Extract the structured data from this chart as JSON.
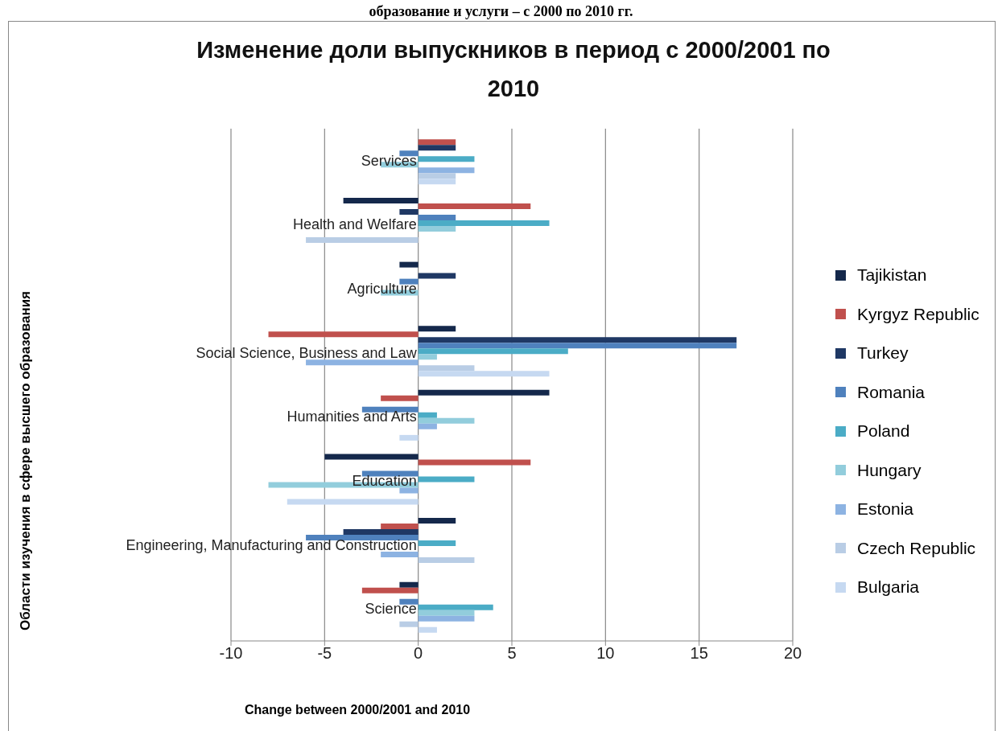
{
  "chart_data": {
    "type": "bar",
    "orientation": "horizontal",
    "title": "Изменение доли выпускников в период с 2000/2001 по 2010",
    "xlabel": "Change between 2000/2001 and 2010",
    "annotations": [
      "образование и услуги – с 2000 по 2010 гг.",
      "Области изучения в сфере высшего образования"
    ],
    "categories": [
      "Services",
      "Health and Welfare",
      "Agriculture",
      "Social Science, Business and Law",
      "Humanities and Arts",
      "Education",
      "Engineering, Manufacturing and Construction",
      "Science"
    ],
    "series": [
      {
        "name": "Tajikistan",
        "color": "#14284b",
        "values": [
          null,
          -4,
          -1,
          2,
          7,
          -5,
          2,
          -1
        ]
      },
      {
        "name": "Kyrgyz Republic",
        "color": "#c0504d",
        "values": [
          2,
          6,
          null,
          -8,
          -2,
          6,
          -2,
          -3
        ]
      },
      {
        "name": "Turkey",
        "color": "#1f3864",
        "values": [
          2,
          -1,
          2,
          17,
          null,
          null,
          -4,
          null
        ]
      },
      {
        "name": "Romania",
        "color": "#4f81bd",
        "values": [
          -1,
          2,
          -1,
          17,
          -3,
          -3,
          -6,
          -1
        ]
      },
      {
        "name": "Poland",
        "color": "#4bacc6",
        "values": [
          3,
          7,
          null,
          8,
          1,
          3,
          2,
          4
        ]
      },
      {
        "name": "Hungary",
        "color": "#92cddc",
        "values": [
          -2,
          2,
          -2,
          1,
          3,
          -8,
          null,
          3
        ]
      },
      {
        "name": "Estonia",
        "color": "#8db3e2",
        "values": [
          3,
          null,
          null,
          -6,
          1,
          -1,
          -2,
          3
        ]
      },
      {
        "name": "Czech Republic",
        "color": "#b9cde5",
        "values": [
          2,
          -6,
          null,
          3,
          null,
          null,
          3,
          -1
        ]
      },
      {
        "name": "Bulgaria",
        "color": "#c6d9f1",
        "values": [
          2,
          null,
          null,
          7,
          -1,
          -7,
          null,
          1
        ]
      }
    ],
    "xlim": [
      -10,
      20
    ],
    "xticks": [
      -10,
      -5,
      0,
      5,
      10,
      15,
      20
    ],
    "grid": "x",
    "legend": "right"
  }
}
